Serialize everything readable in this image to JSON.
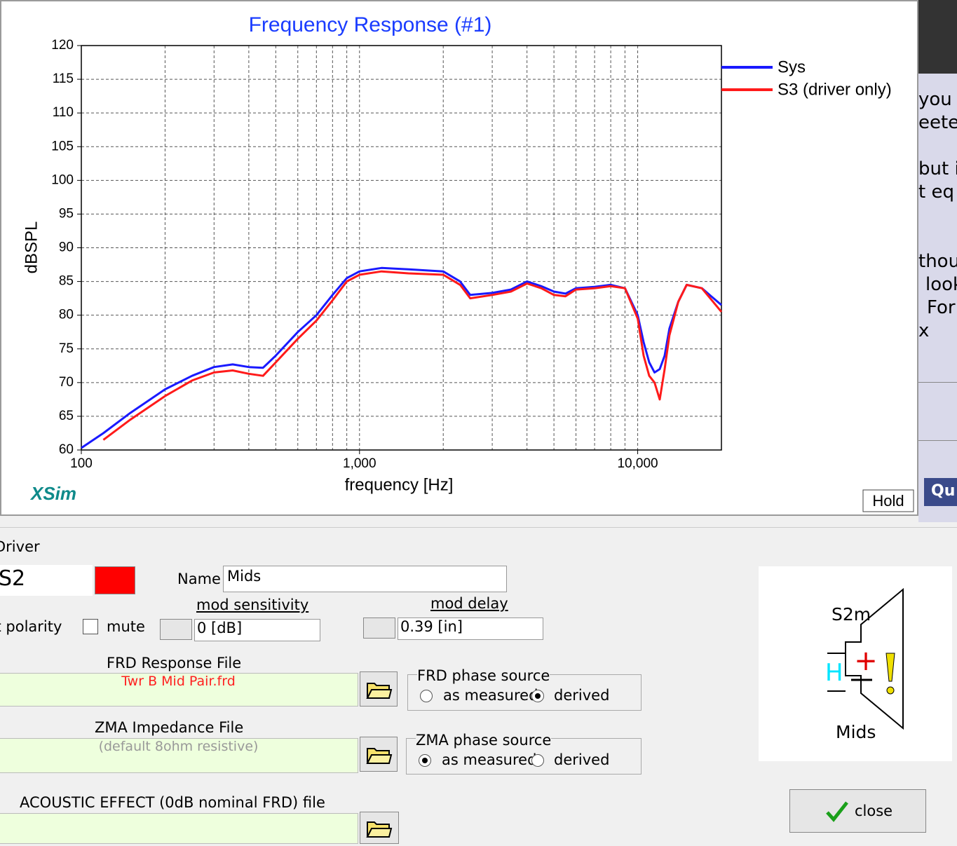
{
  "chart_data": {
    "type": "line",
    "title": "Frequency Response (#1)",
    "xlabel": "frequency [Hz]",
    "ylabel": "dBSPL",
    "xscale": "log",
    "grid": true,
    "legend": "right",
    "xlim": [
      100,
      20000
    ],
    "ylim": [
      60,
      120
    ],
    "xticks": [
      100,
      {
        "value": 1000,
        "label": "1,000"
      },
      {
        "value": 10000,
        "label": "10,000"
      }
    ],
    "xminorticks": [
      200,
      300,
      400,
      500,
      600,
      700,
      800,
      900,
      2000,
      3000,
      4000,
      5000,
      6000,
      7000,
      8000,
      9000
    ],
    "yticks": [
      60,
      65,
      70,
      75,
      80,
      85,
      90,
      95,
      100,
      105,
      110,
      115,
      120
    ],
    "x": [
      100,
      120,
      150,
      200,
      250,
      300,
      350,
      400,
      450,
      500,
      600,
      700,
      800,
      900,
      1000,
      1200,
      1500,
      2000,
      2300,
      2500,
      3000,
      3500,
      4000,
      4500,
      5000,
      5500,
      6000,
      7000,
      8000,
      9000,
      10000,
      10500,
      11000,
      11500,
      12000,
      12500,
      13000,
      14000,
      15000,
      17000,
      20000
    ],
    "series": [
      {
        "name": "Sys",
        "color": "#1a1aff",
        "values": [
          60.3,
          62.5,
          65.5,
          69,
          71,
          72.3,
          72.7,
          72.3,
          72.2,
          74,
          77.5,
          80,
          83,
          85.5,
          86.5,
          87,
          86.8,
          86.5,
          85,
          83,
          83.3,
          83.8,
          85,
          84.3,
          83.5,
          83.2,
          84,
          84.2,
          84.5,
          84,
          80,
          76,
          73,
          71.5,
          72,
          74,
          78,
          82,
          84.5,
          84,
          81.5
        ]
      },
      {
        "name": "S3 (driver only)",
        "color": "#ff1a1a",
        "values": [
          null,
          61.5,
          64.5,
          68,
          70.3,
          71.5,
          71.8,
          71.3,
          71,
          73,
          76.5,
          79.2,
          82.2,
          85,
          86,
          86.5,
          86.2,
          86,
          84.5,
          82.5,
          83,
          83.5,
          84.7,
          84,
          83,
          82.8,
          83.8,
          84,
          84.3,
          84,
          79.5,
          74,
          71,
          70,
          67.5,
          72,
          77,
          82,
          84.5,
          84,
          80.5
        ]
      }
    ]
  },
  "brand": "XSim",
  "hold_button": "Hold",
  "quick_button": "Qu",
  "background_text": [
    "you",
    "eete",
    "but i",
    "t eq",
    "thou",
    "look",
    "For",
    "x"
  ],
  "driver": {
    "section": "Driver",
    "id": "S2",
    "name_label": "Name",
    "name": "Mids",
    "polarity_label": "Invert polarity",
    "mute_label": "mute",
    "mod_sensitivity_label": "mod sensitivity",
    "mod_sensitivity": "0 [dB]",
    "mod_delay_label": "mod delay",
    "mod_delay": "0.39 [in]",
    "frd_label": "FRD Response File",
    "frd_file": "Twr B Mid Pair.frd",
    "frd_phase": {
      "title": "FRD phase source",
      "options": [
        "as measured",
        "derived"
      ]
    },
    "zma_label": "ZMA Impedance File",
    "zma_file": "(default 8ohm resistive)",
    "zma_phase": {
      "title": "ZMA phase source",
      "options": [
        "as measured",
        "derived"
      ]
    },
    "acoustic_label": "ACOUSTIC EFFECT (0dB nominal FRD) file",
    "symbol": {
      "id": "S2m",
      "badge": "H",
      "name": "Mids"
    },
    "close": "close"
  }
}
